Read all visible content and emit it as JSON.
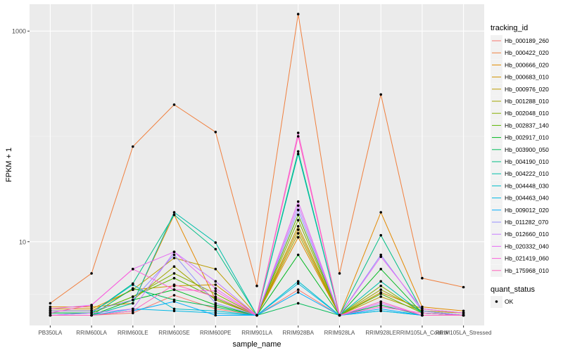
{
  "chart_data": {
    "type": "line",
    "title": "",
    "xlabel": "sample_name",
    "ylabel": "FPKM + 1",
    "y_scale": "log10",
    "ylim": [
      1.6,
      1800
    ],
    "y_ticks": [
      10,
      1000
    ],
    "y_tick_labels": [
      "10",
      "1000"
    ],
    "grid": true,
    "legend_position": "right",
    "categories": [
      "PB350LA",
      "RRIM600LA",
      "RRIM600LE",
      "RRIM600SE",
      "RRIM600PE",
      "RRIM901LA",
      "RRIM928BA",
      "RRIM928LA",
      "RRIM928LE",
      "RRIM105LA_Control",
      "RRIM105LA_Stressed"
    ],
    "legend_title": "tracking_id",
    "point_legend_title": "quant_status",
    "point_legend_items": [
      "OK"
    ],
    "series": [
      {
        "name": "Hb_000189_260",
        "color": "#F8766D",
        "values": [
          2.0,
          2.0,
          2.1,
          3.1,
          2.3,
          2.0,
          3.5,
          2.0,
          2.5,
          2.0,
          2.0
        ]
      },
      {
        "name": "Hb_000422_020",
        "color": "#F07F3D",
        "values": [
          2.6,
          5.0,
          80,
          200,
          110,
          3.8,
          1450,
          5.0,
          250,
          4.5,
          3.7
        ]
      },
      {
        "name": "Hb_000666_020",
        "color": "#E38900",
        "values": [
          2.4,
          2.4,
          2.6,
          18,
          2.8,
          2.0,
          11,
          2.0,
          19,
          2.4,
          2.2
        ]
      },
      {
        "name": "Hb_000683_010",
        "color": "#D19200",
        "values": [
          2.3,
          2.3,
          3.5,
          3.8,
          3.9,
          2.0,
          13,
          2.0,
          3.3,
          2.3,
          2.1
        ]
      },
      {
        "name": "Hb_000976_020",
        "color": "#BB9D00",
        "values": [
          2.2,
          2.2,
          3.5,
          7.0,
          5.5,
          2.0,
          14,
          2.0,
          3.0,
          2.2,
          2.1
        ]
      },
      {
        "name": "Hb_001288_010",
        "color": "#A2A500",
        "values": [
          2.2,
          2.2,
          2.8,
          5.8,
          2.8,
          2.0,
          12,
          2.0,
          3.5,
          2.2,
          2.0
        ]
      },
      {
        "name": "Hb_002048_010",
        "color": "#85AD00",
        "values": [
          2.1,
          2.1,
          3.0,
          5.0,
          3.2,
          2.0,
          16,
          2.0,
          3.8,
          2.1,
          2.0
        ]
      },
      {
        "name": "Hb_002837_140",
        "color": "#5BB300",
        "values": [
          2.1,
          2.1,
          3.0,
          4.5,
          2.9,
          2.0,
          18,
          2.0,
          3.2,
          2.1,
          2.0
        ]
      },
      {
        "name": "Hb_002917_010",
        "color": "#00B81F",
        "values": [
          2.0,
          2.0,
          2.8,
          3.5,
          2.5,
          2.0,
          7.5,
          2.0,
          5.5,
          2.1,
          2.0
        ]
      },
      {
        "name": "Hb_003900_050",
        "color": "#00BC59",
        "values": [
          2.0,
          2.0,
          3.6,
          2.8,
          2.4,
          2.0,
          2.6,
          2.0,
          2.5,
          2.0,
          2.0
        ]
      },
      {
        "name": "Hb_004190_010",
        "color": "#00BE84",
        "values": [
          2.1,
          2.1,
          4.0,
          18,
          8.5,
          2.0,
          72,
          2.0,
          11.5,
          2.2,
          2.0
        ]
      },
      {
        "name": "Hb_004222_010",
        "color": "#00BFA9",
        "values": [
          2.0,
          2.0,
          2.6,
          19,
          9.8,
          2.0,
          68,
          2.0,
          4.2,
          2.1,
          2.0
        ]
      },
      {
        "name": "Hb_004448_030",
        "color": "#00BECA",
        "values": [
          2.0,
          2.1,
          3.9,
          2.3,
          2.2,
          2.0,
          4.2,
          2.0,
          2.2,
          2.0,
          2.0
        ]
      },
      {
        "name": "Hb_004463_040",
        "color": "#00B8E5",
        "values": [
          2.0,
          2.0,
          2.3,
          2.2,
          2.1,
          2.0,
          4.0,
          2.0,
          2.2,
          2.0,
          2.0
        ]
      },
      {
        "name": "Hb_009012_020",
        "color": "#00ACFC",
        "values": [
          2.0,
          2.0,
          2.2,
          2.7,
          2.0,
          2.0,
          3.3,
          2.0,
          2.3,
          2.0,
          2.0
        ]
      },
      {
        "name": "Hb_011282_070",
        "color": "#9590FF",
        "values": [
          2.2,
          2.2,
          2.8,
          7.5,
          2.6,
          2.0,
          20,
          2.0,
          7.5,
          2.2,
          2.0
        ]
      },
      {
        "name": "Hb_012660_010",
        "color": "#C77CFF",
        "values": [
          2.0,
          2.1,
          2.3,
          8.0,
          4.2,
          2.0,
          22,
          2.0,
          2.6,
          2.0,
          2.0
        ]
      },
      {
        "name": "Hb_020332_040",
        "color": "#E76BF3",
        "values": [
          2.3,
          2.5,
          5.5,
          8.0,
          3.6,
          2.0,
          24,
          2.0,
          7.2,
          2.3,
          2.1
        ]
      },
      {
        "name": "Hb_021419_060",
        "color": "#FA62DB",
        "values": [
          2.1,
          2.5,
          5.5,
          3.5,
          3.4,
          2.0,
          108,
          2.0,
          2.4,
          2.1,
          2.0
        ]
      },
      {
        "name": "Hb_175968_010",
        "color": "#FF62BC",
        "values": [
          2.0,
          2.0,
          2.2,
          3.9,
          3.0,
          2.0,
          100,
          2.0,
          2.7,
          2.0,
          2.0
        ]
      }
    ]
  }
}
